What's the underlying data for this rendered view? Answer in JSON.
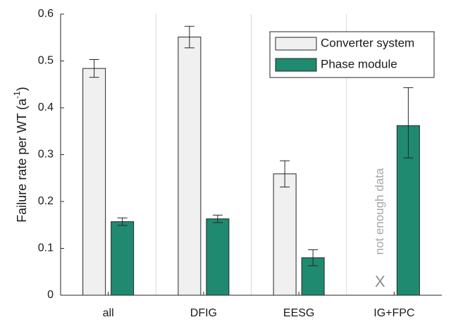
{
  "chart_data": {
    "type": "bar",
    "ylabel_parts": [
      "Failure rate per WT (a",
      "-1",
      ")"
    ],
    "categories": [
      "all",
      "DFIG",
      "EESG",
      "IG+FPC"
    ],
    "series": [
      {
        "name": "Converter system",
        "color": "#f0f0f0",
        "values": [
          0.484,
          0.551,
          0.259,
          null
        ],
        "error_lower": [
          0.019,
          0.023,
          0.028,
          null
        ],
        "error_upper": [
          0.019,
          0.023,
          0.028,
          null
        ]
      },
      {
        "name": "Phase module",
        "color": "#1f8a70",
        "values": [
          0.157,
          0.163,
          0.08,
          0.362
        ],
        "error_lower": [
          0.008,
          0.008,
          0.017,
          0.069
        ],
        "error_upper": [
          0.008,
          0.008,
          0.017,
          0.081
        ]
      }
    ],
    "annotations": [
      {
        "text": "not enough data",
        "category": 3
      },
      {
        "text": "X",
        "category": 3
      }
    ],
    "ylim": [
      0,
      0.6
    ],
    "yticks": [
      0,
      0.1,
      0.2,
      0.3,
      0.4,
      0.5,
      0.6
    ],
    "separators": true,
    "legend": "upper right"
  }
}
